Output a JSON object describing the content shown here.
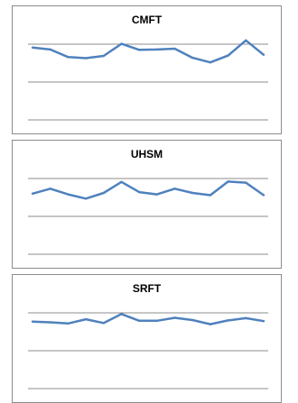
{
  "chart_data": [
    {
      "type": "line",
      "title": "CMFT",
      "grid": true,
      "color": "#4f81bd",
      "ylim": [
        0,
        3
      ],
      "x": [
        1,
        2,
        3,
        4,
        5,
        6,
        7,
        8,
        9,
        10,
        11,
        12,
        13,
        14
      ],
      "values": [
        1.91,
        1.86,
        1.66,
        1.63,
        1.69,
        2.01,
        1.85,
        1.86,
        1.88,
        1.64,
        1.52,
        1.7,
        2.1,
        1.72
      ]
    },
    {
      "type": "line",
      "title": "UHSM",
      "grid": true,
      "color": "#4f81bd",
      "ylim": [
        0,
        3
      ],
      "x": [
        1,
        2,
        3,
        4,
        5,
        6,
        7,
        8,
        9,
        10,
        11,
        12,
        13,
        14
      ],
      "values": [
        1.6,
        1.73,
        1.58,
        1.47,
        1.62,
        1.91,
        1.64,
        1.58,
        1.73,
        1.62,
        1.56,
        1.92,
        1.89,
        1.56
      ]
    },
    {
      "type": "line",
      "title": "SRFT",
      "grid": true,
      "color": "#4f81bd",
      "ylim": [
        0,
        3
      ],
      "x": [
        1,
        2,
        3,
        4,
        5,
        6,
        7,
        8,
        9,
        10,
        11,
        12,
        13,
        14
      ],
      "values": [
        1.77,
        1.75,
        1.72,
        1.83,
        1.73,
        1.97,
        1.79,
        1.79,
        1.87,
        1.81,
        1.7,
        1.8,
        1.86,
        1.78
      ]
    }
  ]
}
